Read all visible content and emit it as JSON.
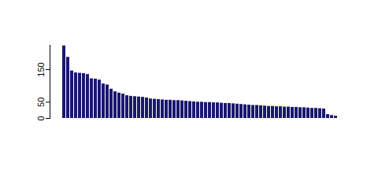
{
  "chart_data": {
    "type": "bar",
    "categories": [
      null,
      null,
      null,
      null,
      null,
      null,
      null,
      null,
      null,
      null,
      null,
      null,
      null,
      null,
      null,
      null,
      null,
      null,
      null,
      null,
      null,
      null,
      null,
      null,
      null,
      null,
      null,
      null,
      null,
      null,
      null,
      null,
      null,
      null,
      null,
      null,
      null,
      null,
      null,
      null,
      null,
      null,
      null,
      null,
      null,
      null,
      null,
      null,
      null,
      null,
      null,
      null,
      null,
      null,
      null,
      null,
      null,
      null,
      null,
      null,
      null,
      null,
      null,
      null,
      null,
      null,
      null,
      null,
      null,
      null
    ],
    "values": [
      223,
      188,
      146,
      140,
      139,
      138,
      135,
      122,
      121,
      118,
      106,
      103,
      90,
      82,
      78,
      75,
      70,
      68,
      67,
      66,
      65,
      63,
      60,
      59,
      58,
      57,
      56,
      56,
      55,
      55,
      54,
      53,
      52,
      51,
      50,
      50,
      49,
      49,
      48,
      48,
      47,
      46,
      46,
      45,
      44,
      43,
      42,
      41,
      40,
      40,
      39,
      38,
      37,
      37,
      36,
      36,
      35,
      35,
      34,
      34,
      33,
      33,
      32,
      31,
      31,
      30,
      29,
      12,
      9,
      7
    ],
    "color": "#191970",
    "ylim": [
      0,
      225
    ],
    "yticks": [
      0,
      50,
      150
    ],
    "tick_labels": "y"
  }
}
